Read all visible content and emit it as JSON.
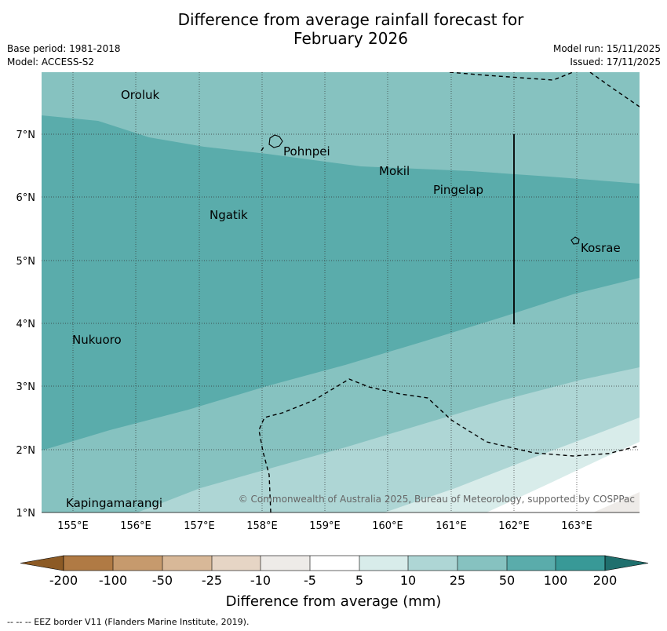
{
  "header": {
    "title_line1": "Difference from average rainfall forecast for",
    "title_line2": "February 2026",
    "base_period": "Base period: 1981-2018",
    "model": "Model: ACCESS-S2",
    "model_run": "Model run: 15/11/2025",
    "issued": "Issued: 17/11/2025"
  },
  "map": {
    "x_ticks": [
      "155°E",
      "156°E",
      "157°E",
      "158°E",
      "159°E",
      "160°E",
      "161°E",
      "162°E",
      "163°E"
    ],
    "y_ticks": [
      "7°N",
      "6°N",
      "5°N",
      "4°N",
      "3°N",
      "2°N",
      "1°N"
    ],
    "places": [
      "Oroluk",
      "Pohnpei",
      "Mokil",
      "Pingelap",
      "Ngatik",
      "Kosrae",
      "Nukuoro",
      "Kapingamarangi"
    ],
    "copyright": "© Commonwealth of Australia 2025, Bureau of Meteorology, supported by COSPPac"
  },
  "legend": {
    "title": "Difference from average (mm)",
    "labels": [
      "-200",
      "-100",
      "-50",
      "-25",
      "-10",
      "-5",
      "5",
      "10",
      "25",
      "50",
      "100",
      "200"
    ],
    "colors": [
      "#8c5a25",
      "#b07a44",
      "#c69a6d",
      "#d8b898",
      "#e6d5c5",
      "#eeebe8",
      "#ffffff",
      "#d8ecea",
      "#aed6d5",
      "#86c2c0",
      "#5aacab",
      "#389997",
      "#1f6f6d"
    ]
  },
  "footnote": "--  --  -- EEZ border V11 (Flanders Marine Institute, 2019)."
}
